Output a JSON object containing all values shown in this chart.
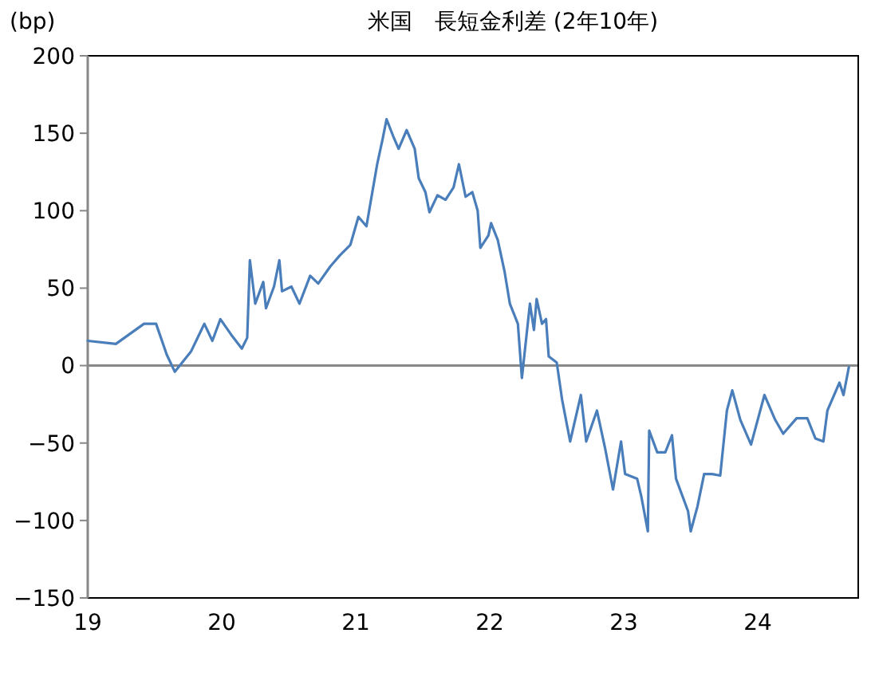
{
  "chart_data": {
    "type": "line",
    "title": "米国　長短金利差 (2年10年)",
    "ylabel": "(bp)",
    "xlim": [
      2019,
      2024.75
    ],
    "xticks": [
      {
        "value": 2019,
        "label": "19"
      },
      {
        "value": 2020,
        "label": "20"
      },
      {
        "value": 2021,
        "label": "21"
      },
      {
        "value": 2022,
        "label": "22"
      },
      {
        "value": 2023,
        "label": "23"
      },
      {
        "value": 2024,
        "label": "24"
      }
    ],
    "ylim": [
      -150,
      200
    ],
    "yticks": [
      -150,
      -100,
      -50,
      0,
      50,
      100,
      150,
      200
    ],
    "line_style": "solid",
    "marker": "none",
    "ref_lines": [
      {
        "axis": "y",
        "value": 0,
        "color": "#888888"
      }
    ],
    "series": [
      {
        "color": "#4a7ebb",
        "x": [
          2019.0,
          2019.21,
          2019.42,
          2019.51,
          2019.59,
          2019.65,
          2019.77,
          2019.87,
          2019.93,
          2019.99,
          2020.07,
          2020.15,
          2020.19,
          2020.21,
          2020.25,
          2020.31,
          2020.33,
          2020.39,
          2020.43,
          2020.45,
          2020.52,
          2020.58,
          2020.66,
          2020.72,
          2020.81,
          2020.88,
          2020.96,
          2021.02,
          2021.08,
          2021.11,
          2021.16,
          2021.2,
          2021.23,
          2021.28,
          2021.32,
          2021.38,
          2021.44,
          2021.47,
          2021.52,
          2021.55,
          2021.61,
          2021.67,
          2021.73,
          2021.77,
          2021.82,
          2021.87,
          2021.91,
          2021.93,
          2021.99,
          2022.01,
          2022.06,
          2022.11,
          2022.15,
          2022.21,
          2022.24,
          2022.3,
          2022.33,
          2022.35,
          2022.39,
          2022.42,
          2022.44,
          2022.5,
          2022.54,
          2022.6,
          2022.68,
          2022.72,
          2022.8,
          2022.86,
          2022.92,
          2022.98,
          2023.01,
          2023.1,
          2023.13,
          2023.18,
          2023.19,
          2023.25,
          2023.31,
          2023.36,
          2023.39,
          2023.48,
          2023.5,
          2023.55,
          2023.6,
          2023.66,
          2023.72,
          2023.77,
          2023.81,
          2023.87,
          2023.95,
          2024.05,
          2024.13,
          2024.19,
          2024.29,
          2024.37,
          2024.43,
          2024.49,
          2024.52,
          2024.61,
          2024.64,
          2024.68
        ],
        "values": [
          16,
          14,
          27,
          27,
          7,
          -4,
          9,
          27,
          16,
          30,
          20,
          11,
          18,
          68,
          40,
          54,
          37,
          51,
          68,
          48,
          51,
          40,
          58,
          53,
          64,
          71,
          78,
          96,
          90,
          105,
          130,
          146,
          159,
          148,
          140,
          152,
          140,
          121,
          112,
          99,
          110,
          107,
          115,
          130,
          109,
          112,
          100,
          76,
          84,
          92,
          81,
          61,
          40,
          27,
          -8,
          40,
          23,
          43,
          27,
          30,
          6,
          2,
          -22,
          -49,
          -19,
          -49,
          -29,
          -53,
          -80,
          -49,
          -70,
          -73,
          -84,
          -107,
          -42,
          -56,
          -56,
          -45,
          -73,
          -94,
          -107,
          -91,
          -70,
          -70,
          -71,
          -29,
          -16,
          -35,
          -51,
          -19,
          -35,
          -44,
          -34,
          -34,
          -47,
          -49,
          -29,
          -11,
          -19,
          -1
        ]
      }
    ]
  }
}
